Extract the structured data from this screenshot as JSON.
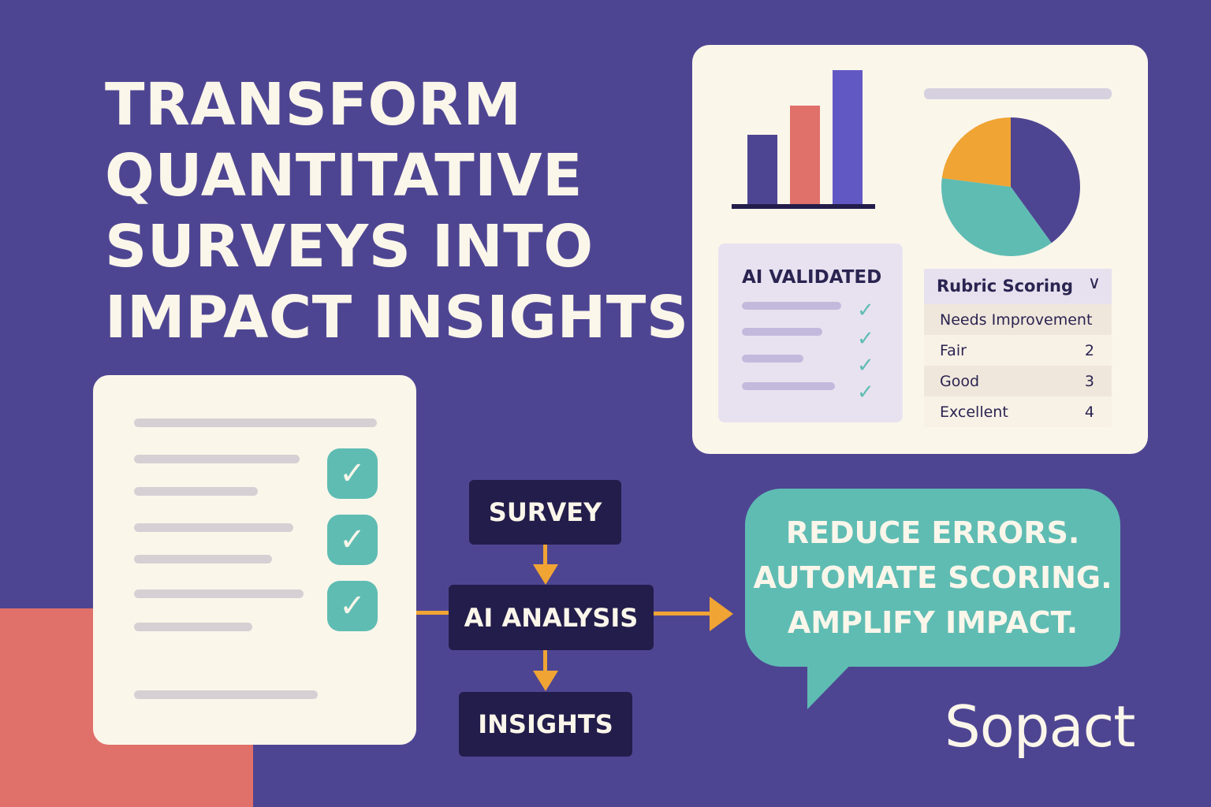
{
  "headline": {
    "lines": [
      "TRANSFORM",
      "QUANTITATIVE",
      "SURVEYS INTO",
      "IMPACT INSIGHTS"
    ]
  },
  "dashboard": {
    "bar_chart": {
      "values": [
        88,
        125,
        170
      ],
      "colors": [
        "#4e4592",
        "#e0706a",
        "#6258c4"
      ]
    },
    "pie_chart": {
      "slices": [
        {
          "value": 0.4,
          "color": "#4e4592"
        },
        {
          "value": 0.37,
          "color": "#5fbcb3"
        },
        {
          "value": 0.23,
          "color": "#f0a434"
        }
      ]
    },
    "validation_card": {
      "title": "AI VALIDATED",
      "check_icon": "checkmark-icon"
    },
    "rubric": {
      "title": "Rubric Scoring",
      "chevron": "∨",
      "rows": [
        {
          "label": "Needs Improvement",
          "score": ""
        },
        {
          "label": "Fair",
          "score": "2"
        },
        {
          "label": "Good",
          "score": "3"
        },
        {
          "label": "Excellent",
          "score": "4"
        }
      ]
    }
  },
  "form": {
    "check_glyph": "✓"
  },
  "flow": {
    "step1": "SURVEY",
    "step2": "AI ANALYSIS",
    "step3": "INSIGHTS"
  },
  "bubble": {
    "lines": [
      "REDUCE ERRORS.",
      "AUTOMATE SCORING.",
      "AMPLIFY IMPACT."
    ]
  },
  "brand": {
    "logo_text": "Sopact"
  },
  "colors": {
    "background": "#4e4592",
    "cream": "#fbf6ea",
    "teal": "#5fbcb3",
    "coral": "#e0706a",
    "orange": "#f0a434",
    "navy": "#231d4b"
  }
}
